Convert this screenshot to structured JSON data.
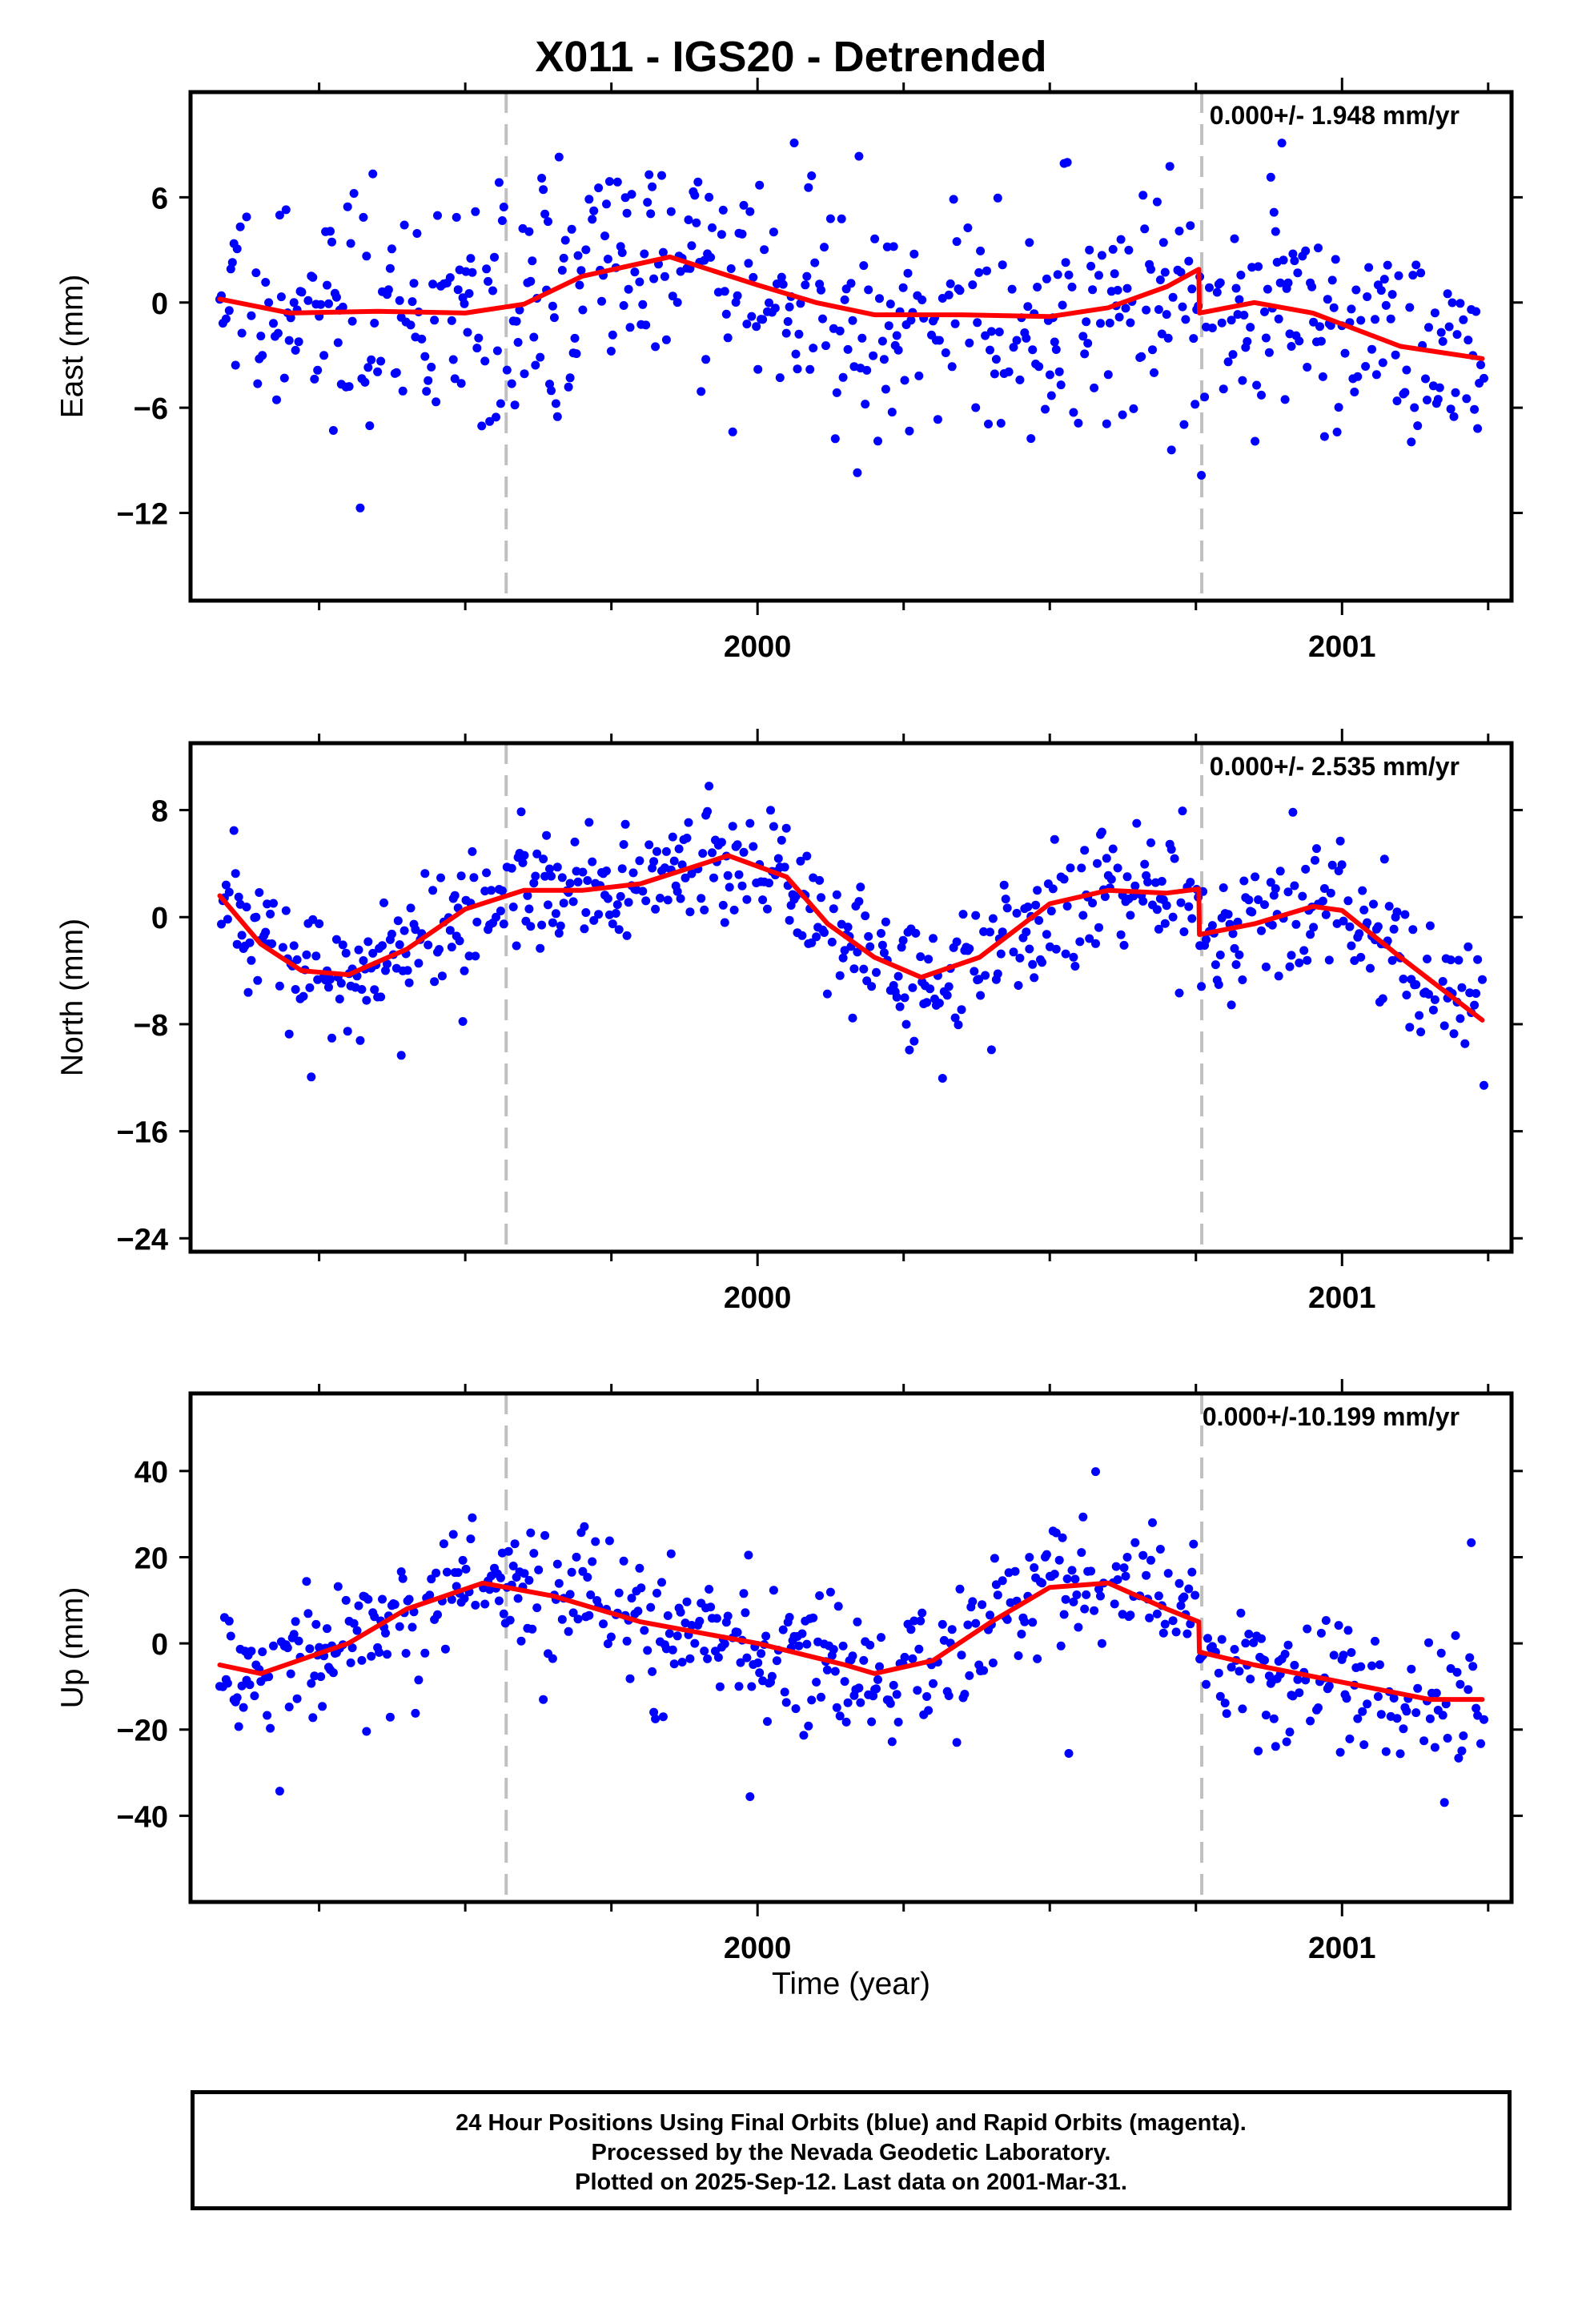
{
  "title": "X011 - IGS20 - Detrended",
  "xlabel": "Time (year)",
  "footer": {
    "line1": "24 Hour Positions Using Final Orbits (blue) and Rapid Orbits (magenta).",
    "line2": "Processed by the Nevada Geodetic Laboratory.",
    "line3": "Plotted on 2025-Sep-12. Last data on 2001-Mar-31."
  },
  "colors": {
    "final_orbits": "#0000ff",
    "rapid_orbits": "#ff00ff",
    "model": "#ff0000",
    "event_lines": "#c0c0c0"
  },
  "chart_data": [
    {
      "type": "scatter",
      "panel": "east",
      "ylabel": "East (mm)",
      "annotation": "0.000+/- 1.948 mm/yr",
      "xlim": [
        1999.03,
        2001.29
      ],
      "ylim": [
        -17,
        12
      ],
      "yticks": [
        -12,
        -6,
        0,
        6
      ],
      "xtick_labels": [
        2000,
        2001
      ],
      "event_lines": [
        1999.57,
        2000.76
      ],
      "noise_sd": 3.2,
      "model": {
        "x": [
          1999.08,
          1999.2,
          1999.35,
          1999.5,
          1999.6,
          1999.7,
          1999.85,
          2000.0,
          2000.1,
          2000.2,
          2000.35,
          2000.5,
          2000.6,
          2000.7,
          2000.755,
          2000.756,
          2000.85,
          2000.95,
          2001.1,
          2001.24
        ],
        "y": [
          0.2,
          -0.6,
          -0.5,
          -0.6,
          -0.1,
          1.5,
          2.6,
          1.0,
          0.0,
          -0.7,
          -0.7,
          -0.8,
          -0.3,
          0.9,
          1.9,
          -0.6,
          0.0,
          -0.6,
          -2.5,
          -3.2
        ]
      }
    },
    {
      "type": "scatter",
      "panel": "north",
      "ylabel": "North (mm)",
      "annotation": "0.000+/- 2.535 mm/yr",
      "xlim": [
        1999.03,
        2001.29
      ],
      "ylim": [
        -25,
        13
      ],
      "yticks": [
        -24,
        -16,
        -8,
        0,
        8
      ],
      "xtick_labels": [
        2000,
        2001
      ],
      "event_lines": [
        1999.57,
        2000.76
      ],
      "noise_sd": 2.4,
      "model": {
        "x": [
          1999.08,
          1999.15,
          1999.22,
          1999.3,
          1999.4,
          1999.5,
          1999.6,
          1999.7,
          1999.8,
          1999.95,
          2000.05,
          2000.12,
          2000.2,
          2000.28,
          2000.38,
          2000.5,
          2000.6,
          2000.7,
          2000.755,
          2000.756,
          2000.85,
          2000.95,
          2001.0,
          2001.1,
          2001.24
        ],
        "y": [
          1.6,
          -2.0,
          -4.0,
          -4.3,
          -2.4,
          0.6,
          2.0,
          2.0,
          2.5,
          4.6,
          3.0,
          -0.5,
          -3.0,
          -4.5,
          -3.0,
          1.0,
          2.0,
          1.8,
          2.1,
          -1.3,
          -0.5,
          0.8,
          0.5,
          -3.0,
          -7.7
        ]
      }
    },
    {
      "type": "scatter",
      "panel": "up",
      "ylabel": "Up (mm)",
      "annotation": "0.000+/-10.199 mm/yr",
      "xlim": [
        1999.03,
        2001.29
      ],
      "ylim": [
        -60,
        58
      ],
      "yticks": [
        -40,
        -20,
        0,
        20,
        40
      ],
      "xtick_labels": [
        2000,
        2001
      ],
      "event_lines": [
        1999.57,
        2000.76
      ],
      "noise_sd": 8.0,
      "model": {
        "x": [
          1999.08,
          1999.15,
          1999.3,
          1999.4,
          1999.53,
          1999.65,
          1999.8,
          2000.0,
          2000.15,
          2000.2,
          2000.3,
          2000.4,
          2000.5,
          2000.6,
          2000.7,
          2000.755,
          2000.756,
          2000.85,
          2001.0,
          2001.15,
          2001.24
        ],
        "y": [
          -5,
          -7,
          0,
          8,
          14,
          11,
          5,
          0,
          -5,
          -7,
          -4,
          5,
          13,
          14,
          8,
          5,
          -2,
          -5,
          -9,
          -13,
          -13
        ]
      }
    }
  ]
}
